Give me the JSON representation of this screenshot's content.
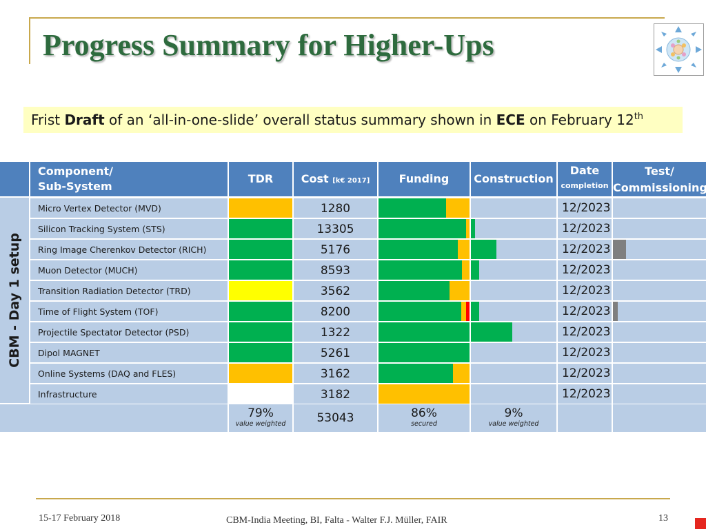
{
  "slide": {
    "title": "Progress Summary for Higher-Ups",
    "subtitle": {
      "part1": "Frist ",
      "bold1": "Draft",
      "part2": " of an ‘all-in-one-slide’ overall status summary shown in ",
      "bold2": "ECE",
      "part3": " on February 12",
      "sup": "th"
    }
  },
  "table": {
    "side_label": "CBM - Day 1 setup",
    "headers": {
      "component_line1": "Component/",
      "component_line2": "Sub-System",
      "tdr": "TDR",
      "cost": "Cost",
      "cost_unit": "[k€ 2017]",
      "funding": "Funding",
      "construction": "Construction",
      "date": "Date",
      "date_sub": "completion",
      "test_line1": "Test/",
      "test_line2": "Commissioning"
    },
    "rows": [
      {
        "name": "Micro Vertex Detector (MVD)",
        "tdr": "orange",
        "cost": "1280",
        "funding": {
          "green": 0.74,
          "orange": 0.26,
          "red": 0
        },
        "construction": 0,
        "date": "12/2023",
        "test": 0
      },
      {
        "name": "Silicon Tracking System (STS)",
        "tdr": "green",
        "cost": "13305",
        "funding": {
          "green": 0.96,
          "orange": 0.04,
          "red": 0
        },
        "construction": 0.05,
        "date": "12/2023",
        "test": 0
      },
      {
        "name": "Ring Image Cherenkov Detector (RICH)",
        "tdr": "green",
        "cost": "5176",
        "funding": {
          "green": 0.87,
          "orange": 0.13,
          "red": 0
        },
        "construction": 0.3,
        "date": "12/2023",
        "test": 0.14
      },
      {
        "name": "Muon Detector (MUCH)",
        "tdr": "green",
        "cost": "8593",
        "funding": {
          "green": 0.92,
          "orange": 0.08,
          "red": 0
        },
        "construction": 0.1,
        "date": "12/2023",
        "test": 0
      },
      {
        "name": "Transition Radiation Detector (TRD)",
        "tdr": "yellow",
        "cost": "3562",
        "funding": {
          "green": 0.78,
          "orange": 0.22,
          "red": 0
        },
        "construction": 0,
        "date": "12/2023",
        "test": 0
      },
      {
        "name": "Time of Flight System (TOF)",
        "tdr": "green",
        "cost": "8200",
        "funding": {
          "green": 0.91,
          "orange": 0.05,
          "red": 0.04
        },
        "construction": 0.1,
        "date": "12/2023",
        "test": 0.05
      },
      {
        "name": "Projectile Spectator Detector (PSD)",
        "tdr": "green",
        "cost": "1322",
        "funding": {
          "green": 1.0,
          "orange": 0,
          "red": 0
        },
        "construction": 0.48,
        "date": "12/2023",
        "test": 0
      },
      {
        "name": "Dipol MAGNET",
        "tdr": "green",
        "cost": "5261",
        "funding": {
          "green": 1.0,
          "orange": 0,
          "red": 0
        },
        "construction": 0,
        "date": "12/2023",
        "test": 0
      },
      {
        "name": "Online Systems (DAQ and FLES)",
        "tdr": "orange",
        "cost": "3162",
        "funding": {
          "green": 0.82,
          "orange": 0.18,
          "red": 0
        },
        "construction": 0,
        "date": "12/2023",
        "test": 0
      },
      {
        "name": "Infrastructure",
        "tdr": "white",
        "cost": "3182",
        "funding": {
          "green": 0,
          "orange": 1.0,
          "red": 0
        },
        "construction": 0,
        "date": "12/2023",
        "test": 0
      }
    ],
    "summary": {
      "tdr": "79%",
      "tdr_note": "value weighted",
      "cost": "53043",
      "funding": "86%",
      "funding_note": "secured",
      "construction": "9%",
      "construction_note": "value weighted"
    },
    "colors": {
      "green": "#00b050",
      "orange": "#ffc000",
      "yellow": "#ffff00",
      "red": "#ff0000",
      "white": "#ffffff",
      "gray": "#7f7f7f",
      "header": "#4f81bd",
      "cell": "#b9cde5"
    }
  },
  "footer": {
    "date": "15-17 February 2018",
    "center": "CBM-India Meeting, BI, Falta - Walter F.J. Müller, FAIR",
    "page": "13"
  }
}
